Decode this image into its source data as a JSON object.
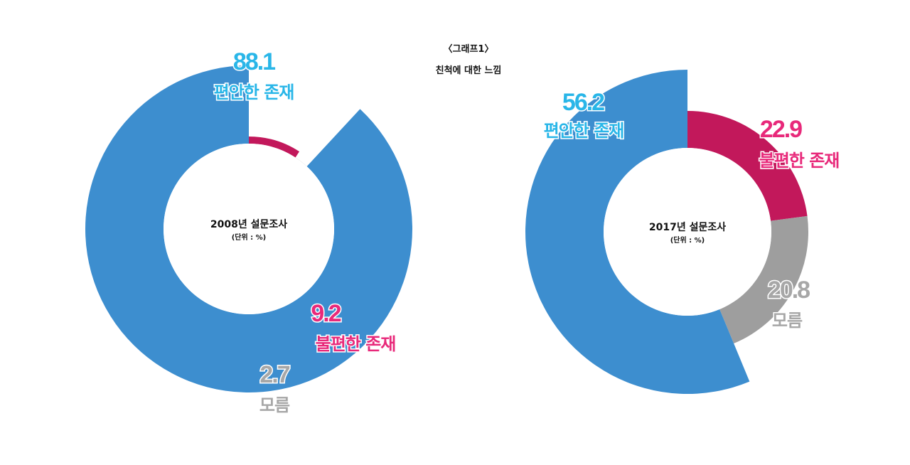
{
  "header": {
    "line1": "〈그래프1〉",
    "line2": "친척에 대한 느낌"
  },
  "chart_data": [
    {
      "type": "pie",
      "subtype": "donut",
      "center_title": "2008년 설문조사",
      "center_unit": "(단위 : %)",
      "slices": [
        {
          "label": "불편한 존재",
          "value": 9.2,
          "value_text": "9.2",
          "color": "#c2185b",
          "label_color": "#e8297a"
        },
        {
          "label": "모름",
          "value": 2.7,
          "value_text": "2.7",
          "color": "#9e9e9e",
          "label_color": "#a7a7a7"
        },
        {
          "label": "편안한 존재",
          "value": 88.1,
          "value_text": "88.1",
          "color": "#3d8ecf",
          "label_color": "#29b6e8"
        }
      ]
    },
    {
      "type": "pie",
      "subtype": "donut",
      "center_title": "2017년 설문조사",
      "center_unit": "(단위 : %)",
      "slices": [
        {
          "label": "불편한 존재",
          "value": 22.9,
          "value_text": "22.9",
          "color": "#c2185b",
          "label_color": "#e8297a"
        },
        {
          "label": "모름",
          "value": 20.8,
          "value_text": "20.8",
          "color": "#9e9e9e",
          "label_color": "#a7a7a7"
        },
        {
          "label": "편안한 존재",
          "value": 56.2,
          "value_text": "56.2",
          "color": "#3d8ecf",
          "label_color": "#29b6e8"
        }
      ]
    }
  ]
}
